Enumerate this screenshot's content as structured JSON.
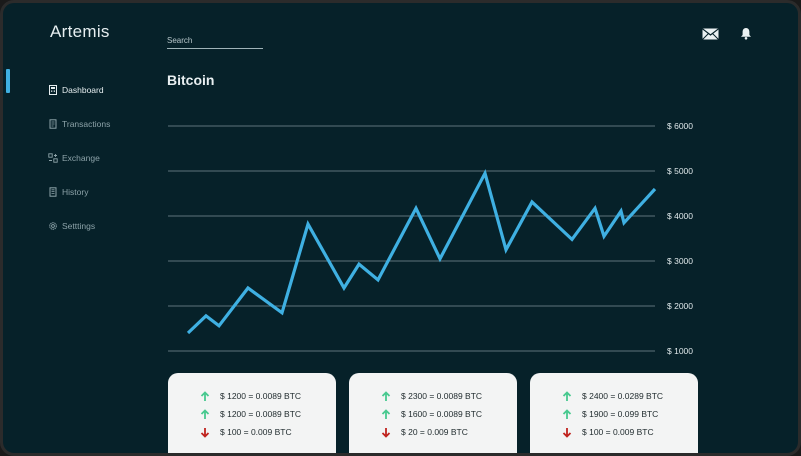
{
  "app": {
    "title": "Artemis"
  },
  "search": {
    "placeholder": "Search",
    "value": ""
  },
  "header": {
    "icons": [
      "mail-icon",
      "bell-icon"
    ]
  },
  "sidebar": {
    "items": [
      {
        "label": "Dashboard",
        "icon": "dashboard-icon",
        "active": true
      },
      {
        "label": "Transactions",
        "icon": "transactions-icon",
        "active": false
      },
      {
        "label": "Exchange",
        "icon": "exchange-icon",
        "active": false
      },
      {
        "label": "History",
        "icon": "history-icon",
        "active": false
      },
      {
        "label": "Setttings",
        "icon": "gear-icon",
        "active": false
      }
    ]
  },
  "main": {
    "title": "Bitcoin"
  },
  "colors": {
    "background": "#062129",
    "accent": "#3fb0e2",
    "up": "#48c98f",
    "down": "#c0231e",
    "card": "#f3f4f4"
  },
  "chart_data": {
    "type": "line",
    "title": "",
    "xlabel": "",
    "ylabel": "",
    "y_ticks": [
      "$ 1000",
      "$ 2000",
      "$ 3000",
      "$ 4000",
      "$ 5000",
      "$ 6000"
    ],
    "ylim": [
      1000,
      6000
    ],
    "grid": true,
    "series": [
      {
        "color": "#3fb0e2",
        "x": [
          0,
          1,
          2,
          3,
          4,
          5,
          6,
          7,
          8,
          9,
          10,
          11,
          12,
          13,
          14,
          15,
          16,
          17,
          18,
          19,
          20,
          21,
          22
        ],
        "values": [
          1400,
          1780,
          1560,
          2400,
          1850,
          3820,
          2400,
          2930,
          2580,
          4170,
          3050,
          4950,
          3250,
          4310,
          3480,
          4170,
          3550,
          4110,
          3850,
          4600,
          4600,
          4600,
          4600
        ]
      }
    ]
  },
  "cards": [
    {
      "rows": [
        {
          "direction": "up",
          "text": "$ 1200 = 0.0089 BTC"
        },
        {
          "direction": "up",
          "text": "$ 1200 = 0.0089 BTC"
        },
        {
          "direction": "down",
          "text": "$ 100 = 0.009 BTC"
        }
      ]
    },
    {
      "rows": [
        {
          "direction": "up",
          "text": "$ 2300 = 0.0089 BTC"
        },
        {
          "direction": "up",
          "text": "$ 1600 = 0.0089 BTC"
        },
        {
          "direction": "down",
          "text": "$ 20 = 0.009 BTC"
        }
      ]
    },
    {
      "rows": [
        {
          "direction": "up",
          "text": "$ 2400 = 0.0289 BTC"
        },
        {
          "direction": "up",
          "text": "$ 1900 = 0.099 BTC"
        },
        {
          "direction": "down",
          "text": "$ 100 = 0.009 BTC"
        }
      ]
    }
  ]
}
